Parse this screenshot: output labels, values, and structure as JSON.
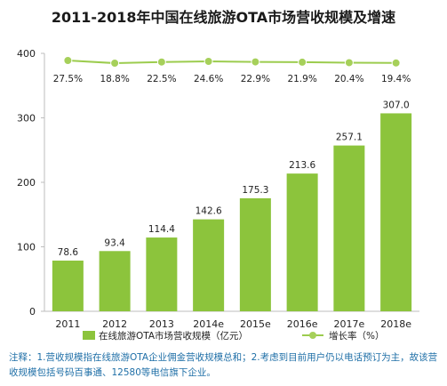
{
  "chart_data": {
    "type": "bar",
    "title": "2011-2018年中国在线旅游OTA市场营收规模及增速",
    "categories": [
      "2011",
      "2012",
      "2013",
      "2014e",
      "2015e",
      "2016e",
      "2017e",
      "2018e"
    ],
    "series": [
      {
        "name": "在线旅游OTA市场营收规模（亿元）",
        "type": "bar",
        "values": [
          78.6,
          93.4,
          114.4,
          142.6,
          175.3,
          213.6,
          257.1,
          307.0
        ],
        "labels": [
          "78.6",
          "93.4",
          "114.4",
          "142.6",
          "175.3",
          "213.6",
          "257.1",
          "307.0"
        ]
      },
      {
        "name": "增长率（%）",
        "type": "line",
        "values": [
          27.5,
          18.8,
          22.5,
          24.6,
          22.9,
          21.9,
          20.4,
          19.4
        ],
        "labels": [
          "27.5%",
          "18.8%",
          "22.5%",
          "24.6%",
          "22.9%",
          "21.9%",
          "20.4%",
          "19.4%"
        ]
      }
    ],
    "y_ticks": [
      "0",
      "100",
      "200",
      "300",
      "400"
    ],
    "ylim": [
      0,
      400
    ],
    "grid": false,
    "legend_position": "bottom",
    "colors": {
      "bar": "#8cc43c",
      "line": "#9ccc4e",
      "marker": "#a6d05a"
    }
  },
  "note": "注释：1.营收规模指在线旅游OTA企业佣金营收规模总和；2.考虑到目前用户仍以电话预订为主，故该营收规模包括号码百事通、12580等电信旗下企业。"
}
